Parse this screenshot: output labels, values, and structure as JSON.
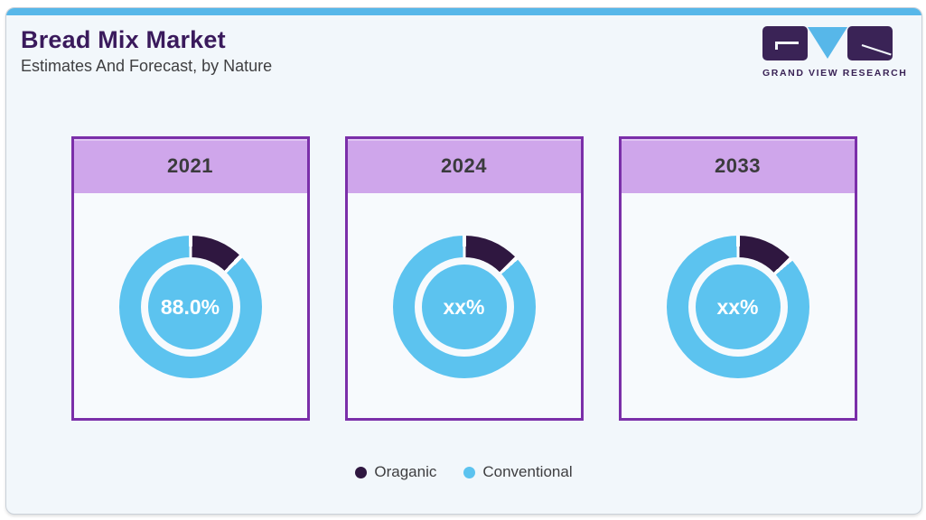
{
  "page": {
    "title": "Bread Mix Market",
    "subtitle": "Estimates And Forecast, by Nature"
  },
  "logo": {
    "text": "GRAND VIEW RESEARCH"
  },
  "colors": {
    "accent_bar": "#57B7E9",
    "card_border": "#7B2FA9",
    "card_header": "#CFA6EB",
    "organic": "#2F1740",
    "conventional": "#5CC3EF",
    "title": "#3A1A5C",
    "separator": "#FFFFFF"
  },
  "cards": [
    {
      "year": "2021",
      "center_label": "88.0%",
      "organic_deg": 43
    },
    {
      "year": "2024",
      "center_label": "xx%",
      "organic_deg": 45
    },
    {
      "year": "2033",
      "center_label": "xx%",
      "organic_deg": 46
    }
  ],
  "legend": {
    "items": [
      {
        "label": "Oraganic",
        "color": "#2F1740"
      },
      {
        "label": "Conventional",
        "color": "#5CC3EF"
      }
    ]
  },
  "chart_data": {
    "type": "pie",
    "subtype": "donut-multiples",
    "title": "Bread Mix Market",
    "subtitle": "Estimates And Forecast, by Nature",
    "legend_entries": [
      "Oraganic",
      "Conventional"
    ],
    "legend_position": "bottom",
    "charts": [
      {
        "year": "2021",
        "center_label": "88.0%",
        "slices": [
          {
            "label": "Oraganic",
            "value_pct": 12.0
          },
          {
            "label": "Conventional",
            "value_pct": 88.0
          }
        ]
      },
      {
        "year": "2024",
        "center_label": "xx%",
        "slices": [
          {
            "label": "Oraganic",
            "value_pct": "xx"
          },
          {
            "label": "Conventional",
            "value_pct": "xx"
          }
        ]
      },
      {
        "year": "2033",
        "center_label": "xx%",
        "slices": [
          {
            "label": "Oraganic",
            "value_pct": "xx"
          },
          {
            "label": "Conventional",
            "value_pct": "xx"
          }
        ]
      }
    ]
  }
}
